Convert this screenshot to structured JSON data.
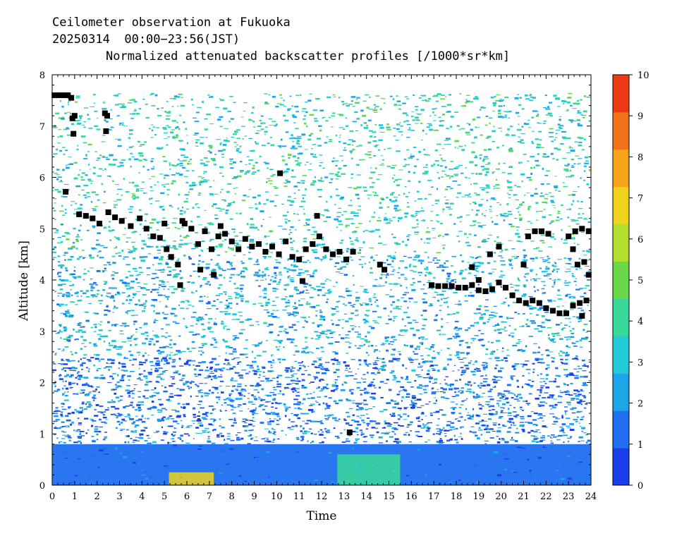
{
  "chart_data": {
    "type": "heatmap",
    "title": "Ceilometer observation at Fukuoka",
    "subtitle": "20250314  00:00−23:56(JST)",
    "subtitle2": "Normalized attenuated backscatter profiles [/1000*sr*km]",
    "xlabel": "Time",
    "ylabel": "Altitude [km]",
    "xlim": [
      0,
      24
    ],
    "ylim": [
      0,
      8
    ],
    "x_ticks": [
      "0",
      "1",
      "2",
      "3",
      "4",
      "5",
      "6",
      "7",
      "8",
      "9",
      "10",
      "11",
      "12",
      "13",
      "14",
      "15",
      "16",
      "17",
      "18",
      "19",
      "20",
      "21",
      "22",
      "23",
      "24"
    ],
    "y_ticks": [
      "0",
      "1",
      "2",
      "3",
      "4",
      "5",
      "6",
      "7",
      "8"
    ],
    "colorbar": {
      "range": [
        0,
        10
      ],
      "ticks": [
        "0",
        "1",
        "2",
        "3",
        "4",
        "5",
        "6",
        "7",
        "8",
        "9",
        "10"
      ],
      "colors": [
        "#1a3ee8",
        "#1f6ff0",
        "#1ea5e8",
        "#22cbd6",
        "#39d99a",
        "#6ad84a",
        "#b2de2e",
        "#f0d21c",
        "#f7a41a",
        "#f2731a",
        "#ee3a12"
      ]
    },
    "data_ceiling_km": 7.65,
    "layers": [
      {
        "name": "surface",
        "x_range": [
          0,
          24
        ],
        "y_range": [
          0,
          0.8
        ],
        "value": 1.2
      },
      {
        "name": "lower",
        "x_range": [
          0,
          24
        ],
        "y_range": [
          0.8,
          2.5
        ],
        "value": 1.6
      },
      {
        "name": "middle",
        "x_range": [
          0,
          24
        ],
        "y_range": [
          2.5,
          4.5
        ],
        "value": 2.6
      },
      {
        "name": "upper",
        "x_range": [
          0,
          24
        ],
        "y_range": [
          4.5,
          7.65
        ],
        "value": 3.5
      },
      {
        "name": "plume",
        "x_range": [
          5.2,
          7.2
        ],
        "y_range": [
          0,
          0.25
        ],
        "value": 7.0
      },
      {
        "name": "bright-band",
        "x_range": [
          12.7,
          15.5
        ],
        "y_range": [
          0,
          0.6
        ],
        "value": 4.2
      }
    ],
    "cloud_base_points": [
      {
        "x": 0.1,
        "y": 7.6
      },
      {
        "x": 0.3,
        "y": 7.6
      },
      {
        "x": 0.5,
        "y": 7.6
      },
      {
        "x": 0.7,
        "y": 7.6
      },
      {
        "x": 0.85,
        "y": 7.55
      },
      {
        "x": 0.9,
        "y": 7.15
      },
      {
        "x": 1.0,
        "y": 7.2
      },
      {
        "x": 0.95,
        "y": 6.85
      },
      {
        "x": 0.6,
        "y": 5.72
      },
      {
        "x": 2.35,
        "y": 7.25
      },
      {
        "x": 2.45,
        "y": 7.2
      },
      {
        "x": 2.4,
        "y": 6.9
      },
      {
        "x": 10.15,
        "y": 6.08
      },
      {
        "x": 1.2,
        "y": 5.28
      },
      {
        "x": 1.5,
        "y": 5.25
      },
      {
        "x": 1.8,
        "y": 5.2
      },
      {
        "x": 2.1,
        "y": 5.1
      },
      {
        "x": 2.5,
        "y": 5.32
      },
      {
        "x": 2.8,
        "y": 5.22
      },
      {
        "x": 3.1,
        "y": 5.15
      },
      {
        "x": 3.5,
        "y": 5.05
      },
      {
        "x": 3.9,
        "y": 5.2
      },
      {
        "x": 4.2,
        "y": 5.0
      },
      {
        "x": 4.5,
        "y": 4.85
      },
      {
        "x": 4.8,
        "y": 4.82
      },
      {
        "x": 5.1,
        "y": 4.6
      },
      {
        "x": 5.3,
        "y": 4.45
      },
      {
        "x": 5.6,
        "y": 4.3
      },
      {
        "x": 5.9,
        "y": 5.1
      },
      {
        "x": 6.2,
        "y": 5.0
      },
      {
        "x": 6.5,
        "y": 4.7
      },
      {
        "x": 6.8,
        "y": 4.95
      },
      {
        "x": 7.1,
        "y": 4.6
      },
      {
        "x": 7.4,
        "y": 4.85
      },
      {
        "x": 7.7,
        "y": 4.9
      },
      {
        "x": 8.0,
        "y": 4.75
      },
      {
        "x": 8.3,
        "y": 4.6
      },
      {
        "x": 8.6,
        "y": 4.8
      },
      {
        "x": 8.9,
        "y": 4.65
      },
      {
        "x": 9.2,
        "y": 4.7
      },
      {
        "x": 9.5,
        "y": 4.55
      },
      {
        "x": 9.8,
        "y": 4.65
      },
      {
        "x": 10.1,
        "y": 4.5
      },
      {
        "x": 10.4,
        "y": 4.75
      },
      {
        "x": 10.7,
        "y": 4.45
      },
      {
        "x": 11.0,
        "y": 4.4
      },
      {
        "x": 11.3,
        "y": 4.6
      },
      {
        "x": 11.6,
        "y": 4.7
      },
      {
        "x": 11.9,
        "y": 4.85
      },
      {
        "x": 12.2,
        "y": 4.6
      },
      {
        "x": 12.5,
        "y": 4.5
      },
      {
        "x": 12.8,
        "y": 4.55
      },
      {
        "x": 13.1,
        "y": 4.4
      },
      {
        "x": 13.4,
        "y": 4.55
      },
      {
        "x": 11.15,
        "y": 3.98
      },
      {
        "x": 13.25,
        "y": 1.03
      },
      {
        "x": 5.0,
        "y": 5.1
      },
      {
        "x": 5.8,
        "y": 5.15
      },
      {
        "x": 7.5,
        "y": 5.05
      },
      {
        "x": 11.8,
        "y": 5.25
      },
      {
        "x": 5.7,
        "y": 3.9
      },
      {
        "x": 6.6,
        "y": 4.2
      },
      {
        "x": 7.2,
        "y": 4.1
      },
      {
        "x": 14.6,
        "y": 4.3
      },
      {
        "x": 14.8,
        "y": 4.2
      },
      {
        "x": 16.9,
        "y": 3.9
      },
      {
        "x": 17.2,
        "y": 3.88
      },
      {
        "x": 17.5,
        "y": 3.88
      },
      {
        "x": 17.8,
        "y": 3.88
      },
      {
        "x": 18.1,
        "y": 3.85
      },
      {
        "x": 18.4,
        "y": 3.85
      },
      {
        "x": 18.7,
        "y": 3.9
      },
      {
        "x": 19.0,
        "y": 3.8
      },
      {
        "x": 19.3,
        "y": 3.78
      },
      {
        "x": 19.6,
        "y": 3.82
      },
      {
        "x": 19.9,
        "y": 3.95
      },
      {
        "x": 20.2,
        "y": 3.85
      },
      {
        "x": 20.5,
        "y": 3.7
      },
      {
        "x": 20.8,
        "y": 3.6
      },
      {
        "x": 21.1,
        "y": 3.55
      },
      {
        "x": 21.4,
        "y": 3.6
      },
      {
        "x": 21.7,
        "y": 3.55
      },
      {
        "x": 22.0,
        "y": 3.45
      },
      {
        "x": 22.3,
        "y": 3.4
      },
      {
        "x": 22.6,
        "y": 3.35
      },
      {
        "x": 22.9,
        "y": 3.35
      },
      {
        "x": 23.2,
        "y": 3.5
      },
      {
        "x": 23.5,
        "y": 3.55
      },
      {
        "x": 23.8,
        "y": 3.6
      },
      {
        "x": 19.5,
        "y": 4.5
      },
      {
        "x": 19.9,
        "y": 4.65
      },
      {
        "x": 18.7,
        "y": 4.25
      },
      {
        "x": 19.0,
        "y": 4.0
      },
      {
        "x": 21.2,
        "y": 4.85
      },
      {
        "x": 21.5,
        "y": 4.95
      },
      {
        "x": 21.8,
        "y": 4.95
      },
      {
        "x": 22.1,
        "y": 4.9
      },
      {
        "x": 21.0,
        "y": 4.3
      },
      {
        "x": 23.0,
        "y": 4.85
      },
      {
        "x": 23.3,
        "y": 4.95
      },
      {
        "x": 23.6,
        "y": 5.0
      },
      {
        "x": 23.9,
        "y": 4.95
      },
      {
        "x": 23.2,
        "y": 4.6
      },
      {
        "x": 23.4,
        "y": 4.3
      },
      {
        "x": 23.7,
        "y": 4.35
      },
      {
        "x": 23.9,
        "y": 4.1
      },
      {
        "x": 23.6,
        "y": 3.3
      }
    ]
  }
}
